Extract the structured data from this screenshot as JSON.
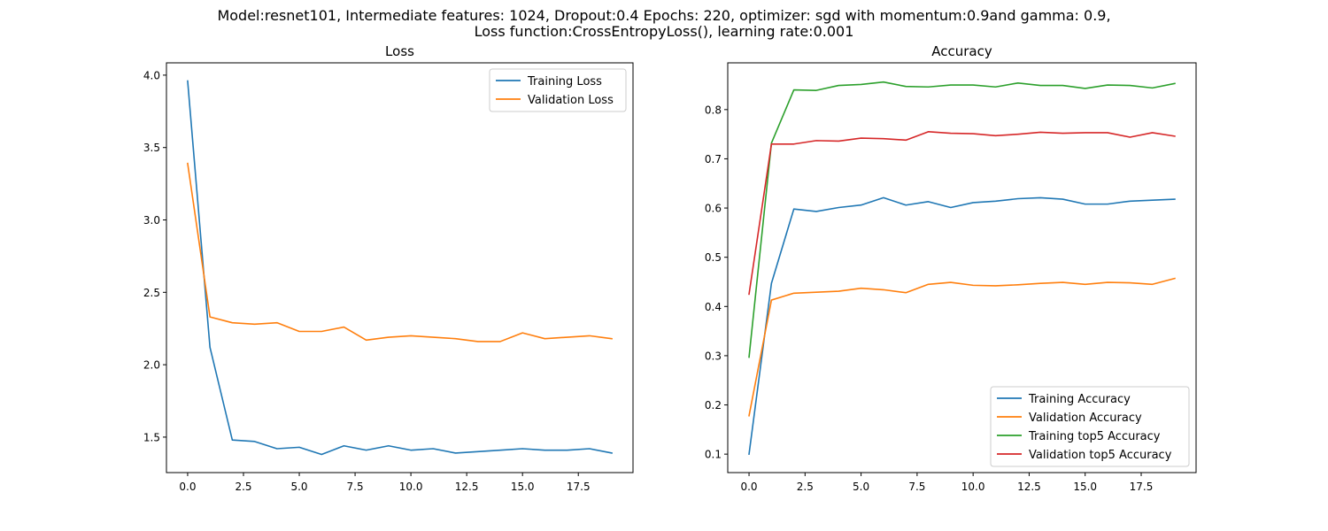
{
  "figure": {
    "suptitle_line1": "Model:resnet101, Intermediate features: 1024, Dropout:0.4 Epochs: 220, optimizer: sgd with momentum:0.9and gamma: 0.9,",
    "suptitle_line2": "Loss function:CrossEntropyLoss(), learning rate:0.001"
  },
  "chart_data": [
    {
      "type": "line",
      "title": "Loss",
      "xlabel": "",
      "ylabel": "",
      "xlim": [
        -0.95,
        19.95
      ],
      "ylim": [
        1.255,
        4.085
      ],
      "x_ticks": [
        0.0,
        2.5,
        5.0,
        7.5,
        10.0,
        12.5,
        15.0,
        17.5
      ],
      "x_tick_labels": [
        "0.0",
        "2.5",
        "5.0",
        "7.5",
        "10.0",
        "12.5",
        "15.0",
        "17.5"
      ],
      "y_ticks": [
        1.5,
        2.0,
        2.5,
        3.0,
        3.5,
        4.0
      ],
      "y_tick_labels": [
        "1.5",
        "2.0",
        "2.5",
        "3.0",
        "3.5",
        "4.0"
      ],
      "grid": false,
      "legend": "top-right",
      "x": [
        0,
        1,
        2,
        3,
        4,
        5,
        6,
        7,
        8,
        9,
        10,
        11,
        12,
        13,
        14,
        15,
        16,
        17,
        18,
        19
      ],
      "series": [
        {
          "name": "Training Loss",
          "color": "#1f77b4",
          "values": [
            3.96,
            2.12,
            1.48,
            1.47,
            1.42,
            1.43,
            1.38,
            1.44,
            1.41,
            1.44,
            1.41,
            1.42,
            1.39,
            1.4,
            1.41,
            1.42,
            1.41,
            1.41,
            1.42,
            1.39
          ]
        },
        {
          "name": "Validation Loss",
          "color": "#ff7f0e",
          "values": [
            3.39,
            2.33,
            2.29,
            2.28,
            2.29,
            2.23,
            2.23,
            2.26,
            2.17,
            2.19,
            2.2,
            2.19,
            2.18,
            2.16,
            2.16,
            2.22,
            2.18,
            2.19,
            2.2,
            2.18
          ]
        }
      ]
    },
    {
      "type": "line",
      "title": "Accuracy",
      "xlabel": "",
      "ylabel": "",
      "xlim": [
        -0.95,
        19.95
      ],
      "ylim": [
        0.0625,
        0.895
      ],
      "x_ticks": [
        0.0,
        2.5,
        5.0,
        7.5,
        10.0,
        12.5,
        15.0,
        17.5
      ],
      "x_tick_labels": [
        "0.0",
        "2.5",
        "5.0",
        "7.5",
        "10.0",
        "12.5",
        "15.0",
        "17.5"
      ],
      "y_ticks": [
        0.1,
        0.2,
        0.3,
        0.4,
        0.5,
        0.6,
        0.7,
        0.8
      ],
      "y_tick_labels": [
        "0.1",
        "0.2",
        "0.3",
        "0.4",
        "0.5",
        "0.6",
        "0.7",
        "0.8"
      ],
      "grid": false,
      "legend": "bottom-right",
      "x": [
        0,
        1,
        2,
        3,
        4,
        5,
        6,
        7,
        8,
        9,
        10,
        11,
        12,
        13,
        14,
        15,
        16,
        17,
        18,
        19
      ],
      "series": [
        {
          "name": "Training Accuracy",
          "color": "#1f77b4",
          "values": [
            0.1,
            0.447,
            0.598,
            0.593,
            0.601,
            0.606,
            0.621,
            0.606,
            0.613,
            0.601,
            0.611,
            0.614,
            0.619,
            0.621,
            0.618,
            0.608,
            0.608,
            0.614,
            0.616,
            0.618
          ]
        },
        {
          "name": "Validation Accuracy",
          "color": "#ff7f0e",
          "values": [
            0.178,
            0.413,
            0.427,
            0.429,
            0.431,
            0.437,
            0.434,
            0.428,
            0.445,
            0.449,
            0.443,
            0.442,
            0.444,
            0.447,
            0.449,
            0.445,
            0.449,
            0.448,
            0.445,
            0.457
          ]
        },
        {
          "name": "Training top5 Accuracy",
          "color": "#2ca02c",
          "values": [
            0.297,
            0.732,
            0.84,
            0.839,
            0.849,
            0.851,
            0.856,
            0.847,
            0.846,
            0.85,
            0.85,
            0.846,
            0.854,
            0.849,
            0.849,
            0.843,
            0.85,
            0.849,
            0.844,
            0.853
          ]
        },
        {
          "name": "Validation top5 Accuracy",
          "color": "#d62728",
          "values": [
            0.425,
            0.73,
            0.73,
            0.737,
            0.736,
            0.742,
            0.741,
            0.738,
            0.755,
            0.752,
            0.751,
            0.747,
            0.75,
            0.754,
            0.752,
            0.753,
            0.753,
            0.744,
            0.753,
            0.746
          ]
        }
      ]
    }
  ]
}
